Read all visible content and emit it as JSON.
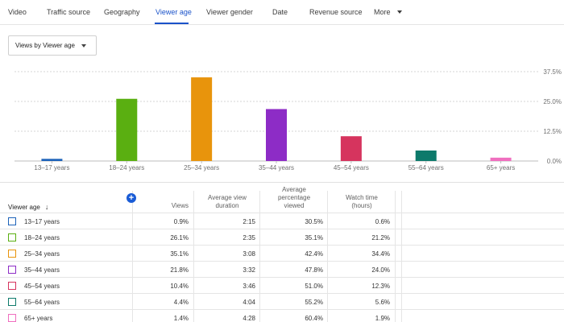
{
  "tabs": [
    {
      "label": "Video"
    },
    {
      "label": "Traffic source"
    },
    {
      "label": "Geography"
    },
    {
      "label": "Viewer age",
      "active": true
    },
    {
      "label": "Viewer gender"
    },
    {
      "label": "Date"
    },
    {
      "label": "Revenue source"
    },
    {
      "label": "More"
    }
  ],
  "dropdown": {
    "label": "Views by Viewer age"
  },
  "chart_data": {
    "type": "bar",
    "categories": [
      "13–17 years",
      "18–24 years",
      "25–34 years",
      "35–44 years",
      "45–54 years",
      "55–64 years",
      "65+ years"
    ],
    "values": [
      0.9,
      26.1,
      35.1,
      21.8,
      10.4,
      4.4,
      1.4
    ],
    "colors": [
      "#1c62b9",
      "#5aaf11",
      "#e8940c",
      "#8d2cc6",
      "#d6345e",
      "#0d7a6b",
      "#f06fbf"
    ],
    "y_ticks": [
      "37.5%",
      "25.0%",
      "12.5%",
      "0.0%"
    ],
    "ylim": [
      0,
      37.5
    ],
    "y_axis_side": "right",
    "grid": "horizontal dotted"
  },
  "table": {
    "headers": {
      "age": "Viewer age",
      "views": "Views",
      "avg_duration": [
        "Average view",
        "duration"
      ],
      "avg_pct": [
        "Average",
        "percentage",
        "viewed"
      ],
      "watch_time": [
        "Watch time",
        "(hours)"
      ]
    },
    "rows": [
      {
        "age": "13–17 years",
        "views": "0.9%",
        "duration": "2:15",
        "pct": "30.5%",
        "watch": "0.6%",
        "color": "#1c62b9"
      },
      {
        "age": "18–24 years",
        "views": "26.1%",
        "duration": "2:35",
        "pct": "35.1%",
        "watch": "21.2%",
        "color": "#5aaf11"
      },
      {
        "age": "25–34 years",
        "views": "35.1%",
        "duration": "3:08",
        "pct": "42.4%",
        "watch": "34.4%",
        "color": "#e8940c"
      },
      {
        "age": "35–44 years",
        "views": "21.8%",
        "duration": "3:32",
        "pct": "47.8%",
        "watch": "24.0%",
        "color": "#8d2cc6"
      },
      {
        "age": "45–54 years",
        "views": "10.4%",
        "duration": "3:46",
        "pct": "51.0%",
        "watch": "12.3%",
        "color": "#d6345e"
      },
      {
        "age": "55–64 years",
        "views": "4.4%",
        "duration": "4:04",
        "pct": "55.2%",
        "watch": "5.6%",
        "color": "#0d7a6b"
      },
      {
        "age": "65+ years",
        "views": "1.4%",
        "duration": "4:28",
        "pct": "60.4%",
        "watch": "1.9%",
        "color": "#f06fbf"
      }
    ]
  }
}
